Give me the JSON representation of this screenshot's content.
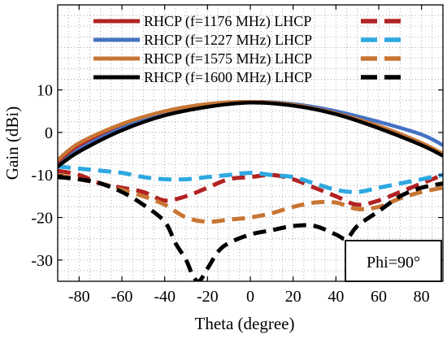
{
  "chart_data": {
    "type": "line",
    "xlabel": "Theta (degree)",
    "ylabel": "Gain (dBi)",
    "xlim": [
      -90,
      90
    ],
    "ylim": [
      -35,
      30
    ],
    "xticks": [
      -80,
      -60,
      -40,
      -20,
      0,
      20,
      40,
      60,
      80
    ],
    "yticks": [
      -30,
      -20,
      -10,
      0,
      10
    ],
    "grid": true,
    "legend_position": "top",
    "annotation": "Phi=90°",
    "series": [
      {
        "name": "RHCP (f=1176 MHz)",
        "color": "#b22222",
        "style": "solid",
        "x": [
          -90,
          -80,
          -60,
          -40,
          -20,
          0,
          20,
          40,
          60,
          80,
          90
        ],
        "y": [
          -7,
          -3,
          1.5,
          4.5,
          6.5,
          7.2,
          6.5,
          4.5,
          1.5,
          -2.5,
          -5.5
        ]
      },
      {
        "name": "LHCP (f=1176 MHz)",
        "color": "#b22222",
        "style": "dashed",
        "x": [
          -90,
          -80,
          -70,
          -60,
          -50,
          -40,
          -30,
          -20,
          -10,
          0,
          10,
          20,
          30,
          40,
          50,
          60,
          70,
          80,
          90
        ],
        "y": [
          -9,
          -10,
          -12,
          -13,
          -14,
          -16,
          -15,
          -13,
          -11,
          -10.5,
          -10,
          -11,
          -13,
          -15,
          -17,
          -16,
          -14,
          -12,
          -10
        ]
      },
      {
        "name": "RHCP (f=1227 MHz)",
        "color": "#4472c4",
        "style": "solid",
        "x": [
          -90,
          -80,
          -60,
          -40,
          -20,
          0,
          20,
          40,
          60,
          80,
          90
        ],
        "y": [
          -8,
          -4,
          1,
          4.5,
          6.5,
          7.2,
          6.7,
          5,
          2.5,
          -0.5,
          -3
        ]
      },
      {
        "name": "LHCP (f=1227 MHz)",
        "color": "#2ea8e0",
        "style": "dashed",
        "x": [
          -90,
          -80,
          -70,
          -60,
          -50,
          -40,
          -30,
          -20,
          -10,
          0,
          10,
          20,
          30,
          40,
          50,
          60,
          70,
          80,
          90
        ],
        "y": [
          -8,
          -8.5,
          -9,
          -9.5,
          -10.5,
          -11,
          -11,
          -10.5,
          -10,
          -9.5,
          -10,
          -10.5,
          -12,
          -13.5,
          -14,
          -13,
          -12,
          -11,
          -10
        ]
      },
      {
        "name": "RHCP (f=1575 MHz)",
        "color": "#c87533",
        "style": "solid",
        "x": [
          -90,
          -80,
          -60,
          -40,
          -20,
          0,
          20,
          40,
          60,
          80,
          90
        ],
        "y": [
          -6.5,
          -2.5,
          2,
          5,
          6.7,
          7.2,
          6.5,
          4.5,
          1.5,
          -2.5,
          -5
        ]
      },
      {
        "name": "LHCP (f=1575 MHz)",
        "color": "#c87533",
        "style": "dashed",
        "x": [
          -90,
          -80,
          -70,
          -60,
          -50,
          -40,
          -30,
          -20,
          -10,
          0,
          10,
          20,
          30,
          40,
          50,
          60,
          70,
          80,
          90
        ],
        "y": [
          -10,
          -11,
          -12,
          -13.5,
          -15,
          -17,
          -20,
          -21,
          -20.5,
          -20,
          -19,
          -17.5,
          -16.5,
          -16.5,
          -18,
          -17.5,
          -15.5,
          -14,
          -13
        ]
      },
      {
        "name": "RHCP (f=1600 MHz)",
        "color": "#000000",
        "style": "solid",
        "x": [
          -90,
          -80,
          -60,
          -40,
          -20,
          0,
          20,
          40,
          60,
          80,
          90
        ],
        "y": [
          -8,
          -4.5,
          0.5,
          4,
          6,
          7,
          6.3,
          4.3,
          1,
          -3,
          -5.5
        ]
      },
      {
        "name": "LHCP (f=1600 MHz)",
        "color": "#000000",
        "style": "dashed",
        "x": [
          -90,
          -80,
          -70,
          -60,
          -50,
          -40,
          -35,
          -30,
          -27,
          -24,
          -20,
          -15,
          -10,
          0,
          10,
          20,
          30,
          40,
          45,
          50,
          60,
          70,
          80,
          90
        ],
        "y": [
          -10.5,
          -11,
          -12,
          -14,
          -17,
          -21,
          -26,
          -30,
          -33.5,
          -35,
          -32,
          -28,
          -26,
          -24,
          -23,
          -22,
          -22,
          -24,
          -25,
          -22,
          -18.5,
          -15,
          -13,
          -12
        ]
      }
    ]
  }
}
